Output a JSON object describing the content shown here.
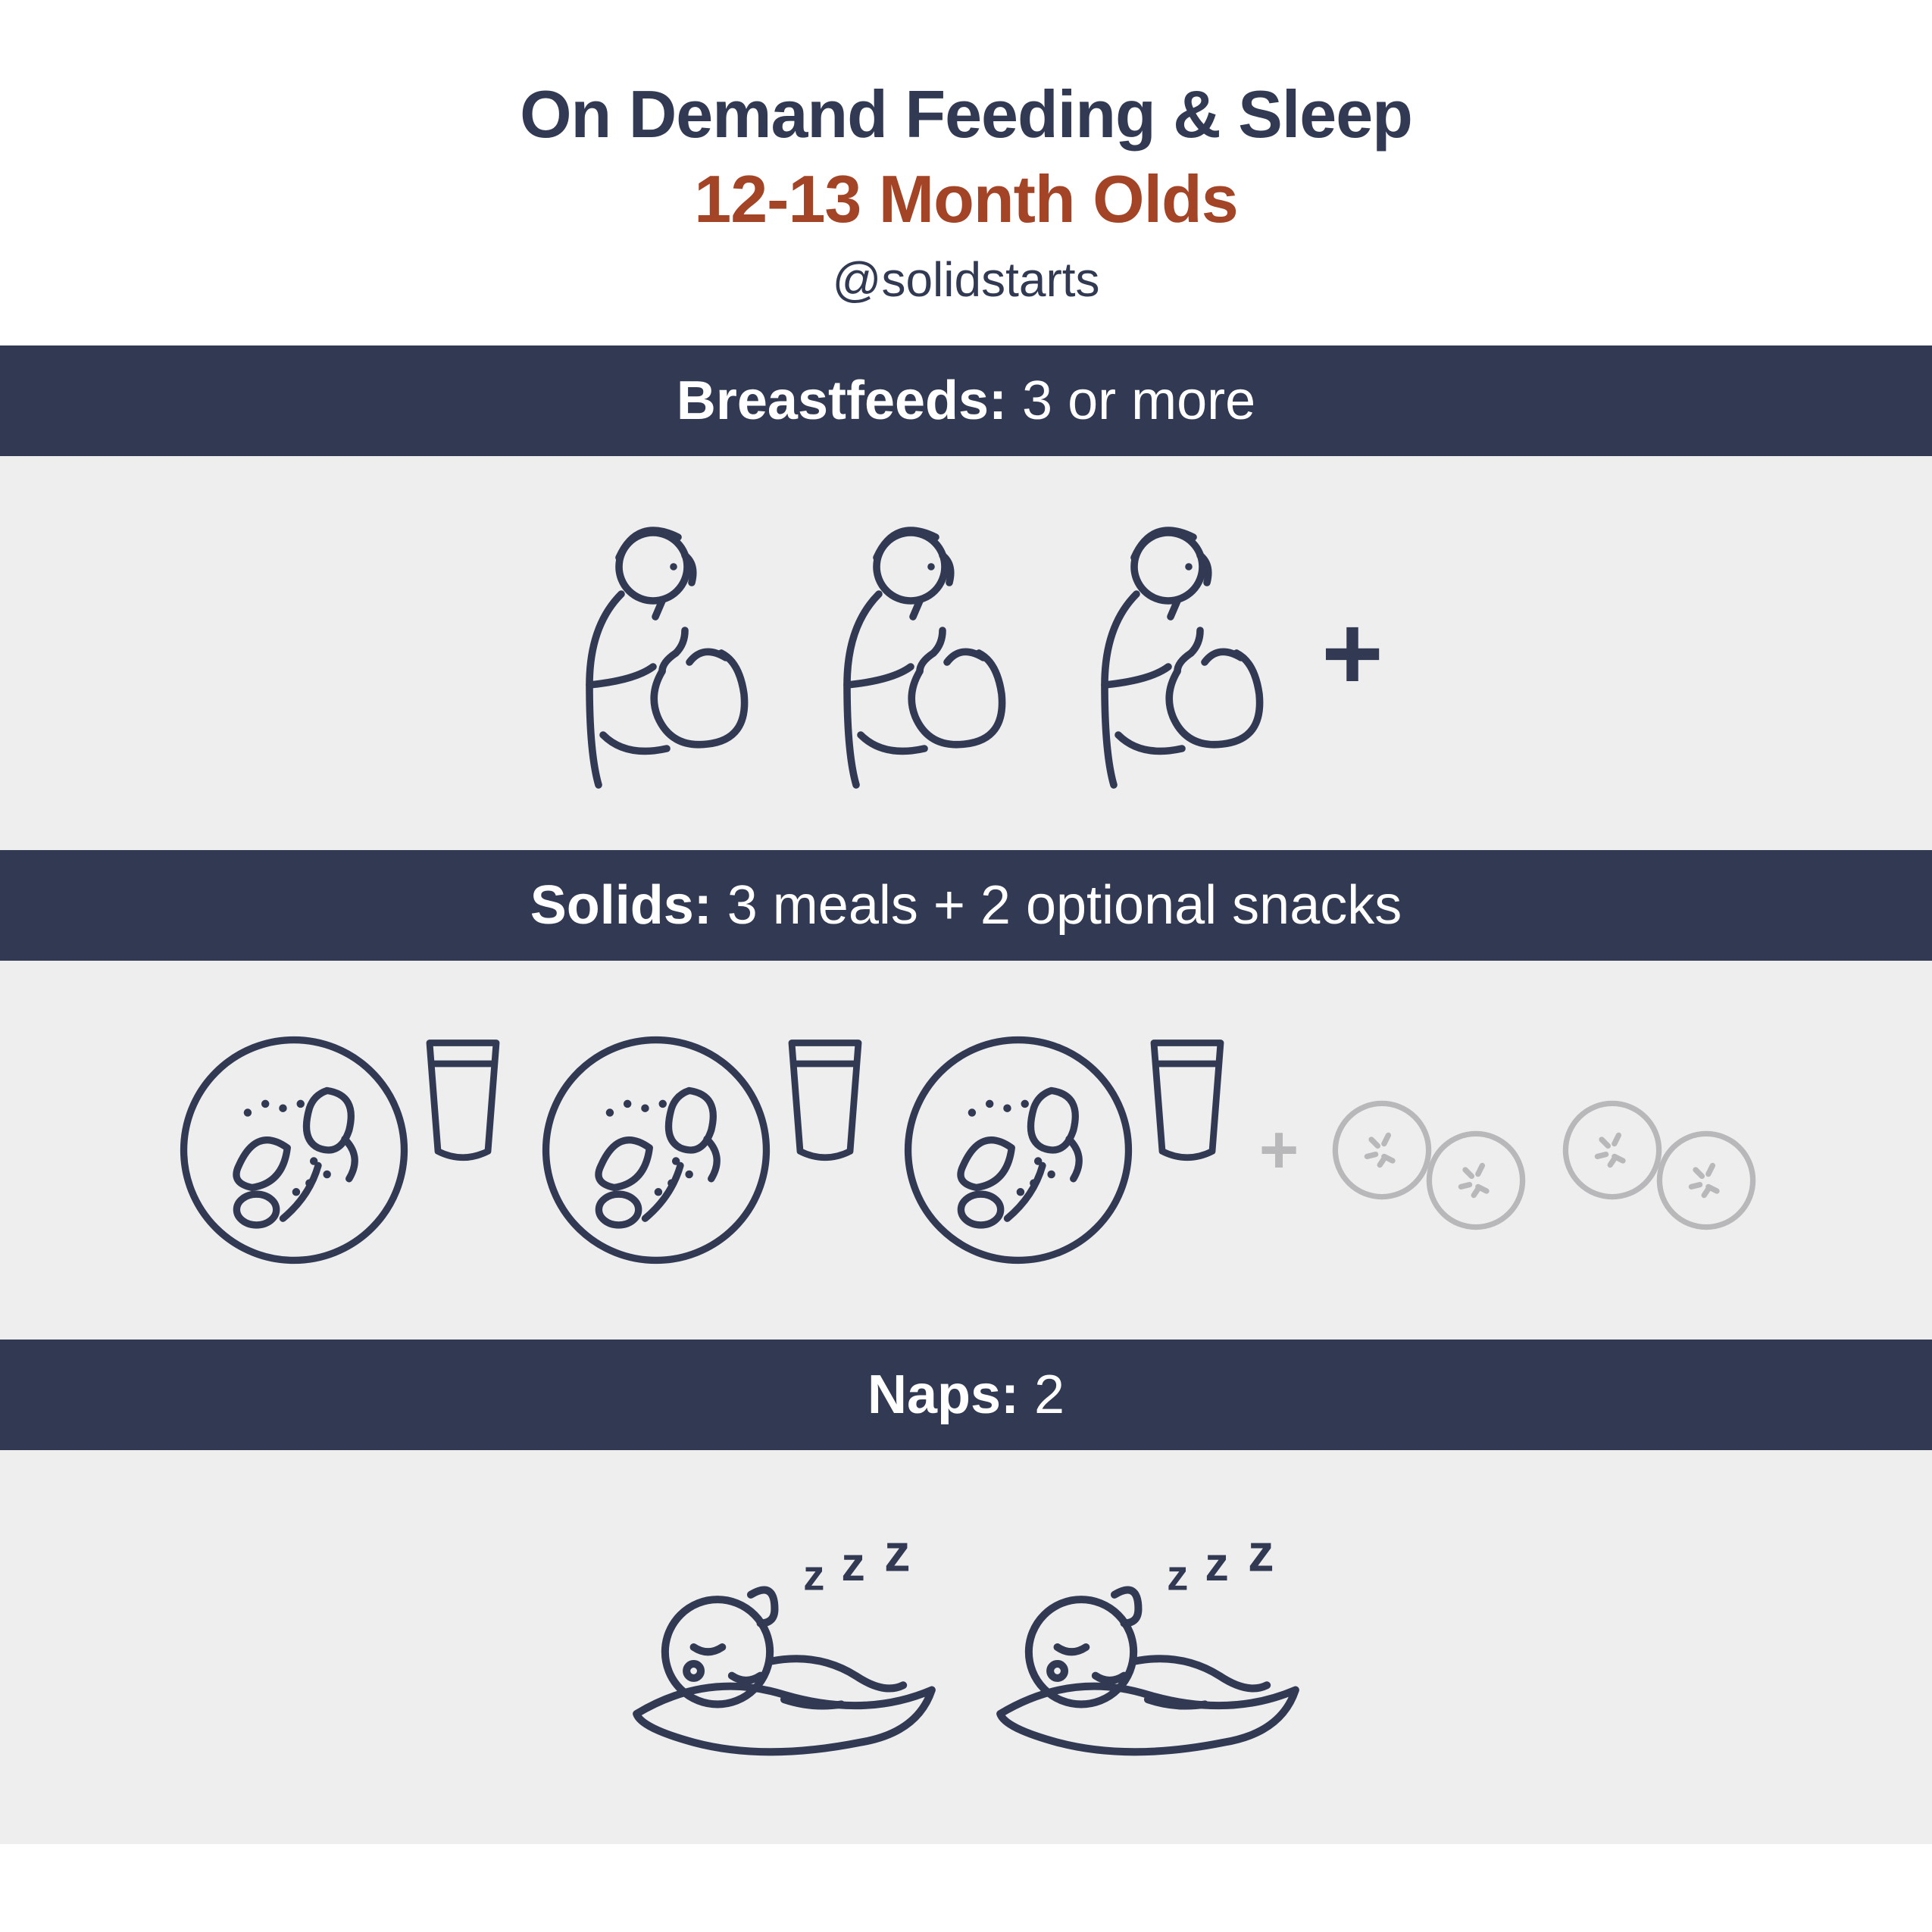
{
  "colors": {
    "navy": "#313a52",
    "rust": "#a34426",
    "bar": "#313a52",
    "body_bg": "#eeeeef",
    "dark_stroke": "#313a52",
    "faded_stroke": "#b8b8ba",
    "white": "#ffffff"
  },
  "header": {
    "title": "On Demand Feeding & Sleep",
    "subtitle": "12-13 Month Olds",
    "handle": "@solidstarts"
  },
  "sections": {
    "breastfeeds": {
      "label_bold": "Breastfeeds:",
      "label_rest": " 3 or more",
      "icon_count": 3,
      "plus": "+"
    },
    "solids": {
      "label_bold": "Solids:",
      "label_rest": " 3 meals + 2 optional snacks",
      "meal_count": 3,
      "plus": "+",
      "snack_count": 2
    },
    "naps": {
      "label_bold": "Naps:",
      "label_rest": " 2",
      "icon_count": 2
    }
  }
}
